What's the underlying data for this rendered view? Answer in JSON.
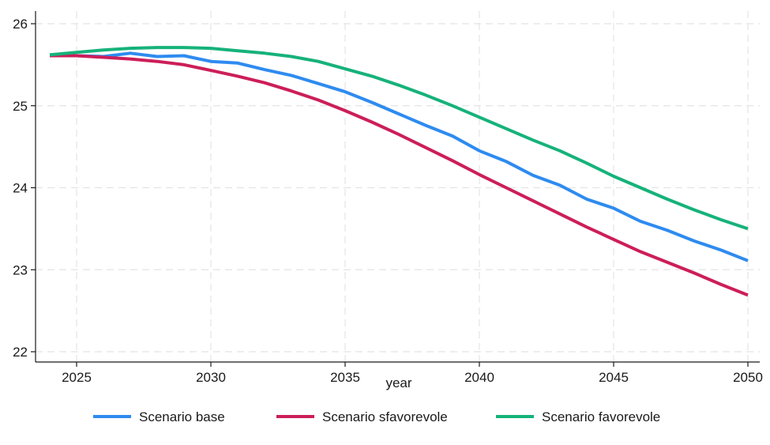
{
  "chart_data": {
    "type": "line",
    "xlabel": "year",
    "ylabel": "",
    "xlim": [
      2024,
      2050
    ],
    "ylim": [
      22,
      26
    ],
    "xticks": [
      2025,
      2030,
      2035,
      2040,
      2045,
      2050
    ],
    "yticks": [
      22,
      23,
      24,
      25,
      26
    ],
    "grid": true,
    "legend_position": "bottom",
    "x": [
      2024,
      2025,
      2026,
      2027,
      2028,
      2029,
      2030,
      2031,
      2032,
      2033,
      2034,
      2035,
      2036,
      2037,
      2038,
      2039,
      2040,
      2041,
      2042,
      2043,
      2044,
      2045,
      2046,
      2047,
      2048,
      2049,
      2050
    ],
    "series": [
      {
        "name": "Scenario base",
        "color": "#2e8bf0",
        "values": [
          25.62,
          25.61,
          25.6,
          25.64,
          25.6,
          25.61,
          25.54,
          25.52,
          25.44,
          25.37,
          25.27,
          25.17,
          25.04,
          24.9,
          24.76,
          24.63,
          24.45,
          24.32,
          24.15,
          24.03,
          23.86,
          23.75,
          23.59,
          23.48,
          23.35,
          23.24,
          23.11
        ]
      },
      {
        "name": "Scenario sfavorevole",
        "color": "#cc1e5a",
        "values": [
          25.61,
          25.61,
          25.59,
          25.57,
          25.54,
          25.5,
          25.43,
          25.36,
          25.28,
          25.18,
          25.07,
          24.94,
          24.8,
          24.65,
          24.49,
          24.33,
          24.16,
          24.0,
          23.84,
          23.68,
          23.52,
          23.37,
          23.22,
          23.09,
          22.96,
          22.82,
          22.69
        ]
      },
      {
        "name": "Scenario favorevole",
        "color": "#16b27a",
        "values": [
          25.62,
          25.65,
          25.68,
          25.7,
          25.71,
          25.71,
          25.7,
          25.67,
          25.64,
          25.6,
          25.54,
          25.45,
          25.36,
          25.25,
          25.13,
          25.0,
          24.86,
          24.72,
          24.58,
          24.45,
          24.3,
          24.14,
          24.0,
          23.86,
          23.73,
          23.61,
          23.5
        ]
      }
    ]
  }
}
